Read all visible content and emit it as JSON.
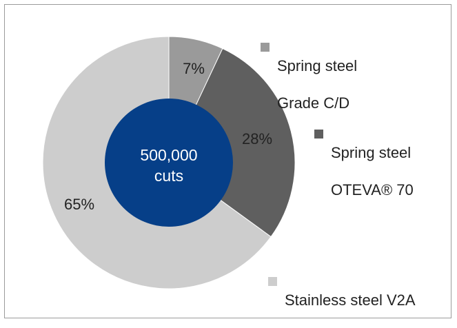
{
  "chart_data": {
    "type": "pie",
    "title": "",
    "center_label": {
      "line1": "500,000",
      "line2": "cuts"
    },
    "legend_position": "right",
    "slices": [
      {
        "name": "Spring steel Grade C/D",
        "legend_line1": "Spring steel",
        "legend_line2": "Grade C/D",
        "value": 7,
        "label": "7%",
        "color": "#9a9a9a"
      },
      {
        "name": "Spring steel OTEVA® 70",
        "legend_line1": "Spring steel",
        "legend_line2": "OTEVA® 70",
        "value": 28,
        "label": "28%",
        "color": "#5f5f5f"
      },
      {
        "name": "Stainless steel V2A",
        "legend_line1": "Stainless steel V2A",
        "legend_line2": "",
        "value": 65,
        "label": "65%",
        "color": "#cdcdcd"
      }
    ],
    "center_color": "#063f88"
  }
}
